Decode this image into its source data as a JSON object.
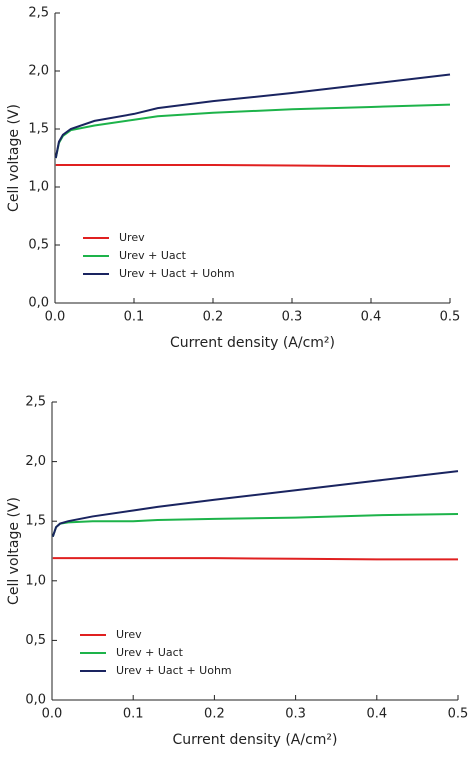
{
  "chart_data": [
    {
      "type": "line",
      "x": [
        0.001,
        0.005,
        0.01,
        0.02,
        0.05,
        0.1,
        0.13,
        0.2,
        0.3,
        0.4,
        0.5
      ],
      "series": [
        {
          "name": "Urev",
          "color": "#e02020",
          "values": [
            1.19,
            1.19,
            1.19,
            1.19,
            1.19,
            1.19,
            1.19,
            1.19,
            1.185,
            1.18,
            1.18
          ]
        },
        {
          "name": "Urev + Uact",
          "color": "#1db34a",
          "values": [
            1.25,
            1.38,
            1.44,
            1.49,
            1.53,
            1.58,
            1.61,
            1.64,
            1.67,
            1.69,
            1.71
          ]
        },
        {
          "name": "Urev + Uact + Uohm",
          "color": "#1a2460",
          "values": [
            1.25,
            1.39,
            1.45,
            1.5,
            1.57,
            1.63,
            1.68,
            1.74,
            1.81,
            1.89,
            1.97
          ]
        }
      ],
      "x_label": "Current density (A/cm²)",
      "y_label": "Cell voltage (V)",
      "xlim": [
        0,
        0.5
      ],
      "xticks": [
        {
          "value": 0,
          "label": "0.0"
        },
        0.1,
        0.2,
        0.3,
        0.4,
        0.5
      ],
      "ylim": [
        0,
        2.5
      ],
      "yticks": [
        {
          "value": 0,
          "label": "0,0"
        },
        {
          "value": 0.5,
          "label": "0,5"
        },
        {
          "value": 1,
          "label": "1,0"
        },
        {
          "value": 1.5,
          "label": "1,5"
        },
        {
          "value": 2,
          "label": "2,0"
        },
        {
          "value": 2.5,
          "label": "2,5"
        }
      ],
      "legend": "lower-left"
    },
    {
      "type": "line",
      "x": [
        0.001,
        0.005,
        0.01,
        0.02,
        0.05,
        0.1,
        0.13,
        0.2,
        0.3,
        0.4,
        0.5
      ],
      "series": [
        {
          "name": "Urev",
          "color": "#e02020",
          "values": [
            1.19,
            1.19,
            1.19,
            1.19,
            1.19,
            1.19,
            1.19,
            1.19,
            1.185,
            1.18,
            1.18
          ]
        },
        {
          "name": "Urev + Uact",
          "color": "#1db34a",
          "values": [
            1.37,
            1.45,
            1.48,
            1.49,
            1.5,
            1.5,
            1.51,
            1.52,
            1.53,
            1.55,
            1.56
          ]
        },
        {
          "name": "Urev + Uact + Uohm",
          "color": "#1a2460",
          "values": [
            1.37,
            1.45,
            1.48,
            1.5,
            1.54,
            1.59,
            1.62,
            1.68,
            1.76,
            1.84,
            1.92
          ]
        }
      ],
      "x_label": "Current density (A/cm²)",
      "y_label": "Cell voltage (V)",
      "xlim": [
        0,
        0.5
      ],
      "xticks": [
        {
          "value": 0,
          "label": "0.0"
        },
        0.1,
        0.2,
        0.3,
        0.4,
        0.5
      ],
      "ylim": [
        0,
        2.5
      ],
      "yticks": [
        {
          "value": 0,
          "label": "0,0"
        },
        {
          "value": 0.5,
          "label": "0,5"
        },
        {
          "value": 1,
          "label": "1,0"
        },
        {
          "value": 1.5,
          "label": "1,5"
        },
        {
          "value": 2,
          "label": "2,0"
        },
        {
          "value": 2.5,
          "label": "2,5"
        }
      ],
      "legend": "lower-left"
    }
  ]
}
